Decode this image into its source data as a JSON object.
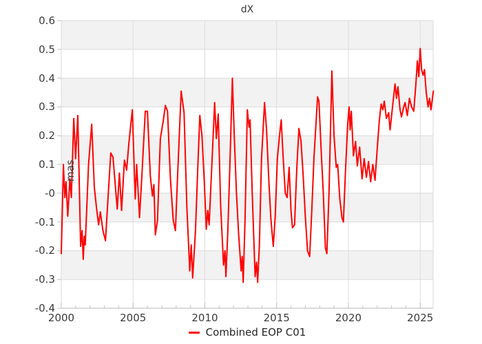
{
  "title": "dX",
  "legend": {
    "label": "Combined EOP C01",
    "position": "bottom-center"
  },
  "colors": {
    "line": "#ff0000",
    "band": "#f2f2f2",
    "grid": "#dcdcdc",
    "spine": "#d9d9d9",
    "axis": "#b8b8b8",
    "tick": "#c2c2c2",
    "text": "#3b3b3b",
    "legend_text": "#262626",
    "background": "#ffffff"
  },
  "y_axis": {
    "label": "mas",
    "tick_labels": [
      "0.6",
      "0.5",
      "0.4",
      "0.3",
      "0.2",
      "0.1",
      "-0",
      "-0.1",
      "-0.2",
      "-0.3",
      "-0.4"
    ],
    "tick_values": [
      0.6,
      0.5,
      0.4,
      0.3,
      0.2,
      0.1,
      0,
      -0.1,
      -0.2,
      -0.3,
      -0.4
    ]
  },
  "x_axis": {
    "tick_labels": [
      "2000",
      "2005",
      "2010",
      "2015",
      "2020",
      "2025"
    ],
    "tick_values": [
      2000,
      2005,
      2010,
      2015,
      2020,
      2025
    ],
    "minor_tick_step_years": 1
  },
  "chart_data": {
    "type": "line",
    "title": "dX",
    "xlabel": "",
    "ylabel": "mas",
    "xlim": [
      2000,
      2025.9
    ],
    "ylim": [
      -0.4,
      0.6
    ],
    "grid": true,
    "alternating_bands": true,
    "gray_band_ranges": [
      [
        0.5,
        0.6
      ],
      [
        0.3,
        0.4
      ],
      [
        0.1,
        0.2
      ],
      [
        -0.1,
        0.0
      ],
      [
        -0.3,
        -0.2
      ]
    ],
    "legend_position": "bottom-center",
    "series": [
      {
        "name": "Combined EOP C01",
        "color": "#ff0000",
        "points": [
          [
            2000.0,
            -0.21
          ],
          [
            2000.15,
            0.1
          ],
          [
            2000.25,
            -0.015
          ],
          [
            2000.33,
            0.04
          ],
          [
            2000.45,
            -0.08
          ],
          [
            2000.6,
            0.05
          ],
          [
            2000.7,
            -0.015
          ],
          [
            2000.87,
            0.26
          ],
          [
            2001.0,
            0.12
          ],
          [
            2001.15,
            0.27
          ],
          [
            2001.35,
            -0.185
          ],
          [
            2001.45,
            -0.13
          ],
          [
            2001.53,
            -0.23
          ],
          [
            2001.6,
            -0.15
          ],
          [
            2001.67,
            -0.18
          ],
          [
            2001.9,
            0.1
          ],
          [
            2002.12,
            0.24
          ],
          [
            2002.3,
            0.02
          ],
          [
            2002.45,
            -0.05
          ],
          [
            2002.6,
            -0.11
          ],
          [
            2002.72,
            -0.065
          ],
          [
            2002.9,
            -0.13
          ],
          [
            2003.08,
            -0.165
          ],
          [
            2003.25,
            -0.02
          ],
          [
            2003.45,
            0.14
          ],
          [
            2003.6,
            0.125
          ],
          [
            2003.9,
            -0.055
          ],
          [
            2004.05,
            0.07
          ],
          [
            2004.2,
            -0.06
          ],
          [
            2004.4,
            0.115
          ],
          [
            2004.55,
            0.08
          ],
          [
            2004.7,
            0.17
          ],
          [
            2004.95,
            0.29
          ],
          [
            2005.15,
            -0.02
          ],
          [
            2005.25,
            0.1
          ],
          [
            2005.45,
            -0.085
          ],
          [
            2005.6,
            0.05
          ],
          [
            2005.85,
            0.285
          ],
          [
            2006.0,
            0.285
          ],
          [
            2006.2,
            0.06
          ],
          [
            2006.35,
            -0.01
          ],
          [
            2006.45,
            0.03
          ],
          [
            2006.55,
            -0.145
          ],
          [
            2006.7,
            -0.095
          ],
          [
            2006.9,
            0.19
          ],
          [
            2007.1,
            0.25
          ],
          [
            2007.25,
            0.305
          ],
          [
            2007.4,
            0.285
          ],
          [
            2007.6,
            0.05
          ],
          [
            2007.8,
            -0.095
          ],
          [
            2007.95,
            -0.13
          ],
          [
            2008.1,
            0.06
          ],
          [
            2008.35,
            0.355
          ],
          [
            2008.55,
            0.28
          ],
          [
            2008.75,
            -0.05
          ],
          [
            2008.95,
            -0.27
          ],
          [
            2009.05,
            -0.18
          ],
          [
            2009.15,
            -0.295
          ],
          [
            2009.35,
            -0.13
          ],
          [
            2009.5,
            0.08
          ],
          [
            2009.65,
            0.27
          ],
          [
            2009.8,
            0.2
          ],
          [
            2009.95,
            0.05
          ],
          [
            2010.1,
            -0.125
          ],
          [
            2010.2,
            -0.06
          ],
          [
            2010.3,
            -0.11
          ],
          [
            2010.5,
            0.11
          ],
          [
            2010.68,
            0.315
          ],
          [
            2010.8,
            0.19
          ],
          [
            2010.93,
            0.275
          ],
          [
            2011.1,
            -0.04
          ],
          [
            2011.3,
            -0.25
          ],
          [
            2011.4,
            -0.2
          ],
          [
            2011.47,
            -0.29
          ],
          [
            2011.6,
            -0.13
          ],
          [
            2011.75,
            0.11
          ],
          [
            2011.92,
            0.4
          ],
          [
            2012.05,
            0.2
          ],
          [
            2012.2,
            0.0
          ],
          [
            2012.35,
            -0.14
          ],
          [
            2012.53,
            -0.27
          ],
          [
            2012.6,
            -0.22
          ],
          [
            2012.67,
            -0.31
          ],
          [
            2012.8,
            -0.09
          ],
          [
            2012.96,
            0.29
          ],
          [
            2013.08,
            0.23
          ],
          [
            2013.15,
            0.255
          ],
          [
            2013.3,
            0.0
          ],
          [
            2013.5,
            -0.29
          ],
          [
            2013.6,
            -0.24
          ],
          [
            2013.68,
            -0.31
          ],
          [
            2013.8,
            -0.18
          ],
          [
            2013.95,
            0.12
          ],
          [
            2014.16,
            0.315
          ],
          [
            2014.3,
            0.22
          ],
          [
            2014.45,
            0.05
          ],
          [
            2014.6,
            -0.09
          ],
          [
            2014.77,
            -0.185
          ],
          [
            2014.9,
            -0.08
          ],
          [
            2015.05,
            0.12
          ],
          [
            2015.2,
            0.2
          ],
          [
            2015.32,
            0.255
          ],
          [
            2015.45,
            0.13
          ],
          [
            2015.6,
            0.0
          ],
          [
            2015.73,
            -0.015
          ],
          [
            2015.87,
            0.09
          ],
          [
            2016.0,
            -0.06
          ],
          [
            2016.1,
            -0.12
          ],
          [
            2016.25,
            -0.11
          ],
          [
            2016.4,
            0.08
          ],
          [
            2016.55,
            0.225
          ],
          [
            2016.7,
            0.18
          ],
          [
            2016.85,
            0.06
          ],
          [
            2017.0,
            -0.08
          ],
          [
            2017.15,
            -0.2
          ],
          [
            2017.3,
            -0.22
          ],
          [
            2017.45,
            -0.06
          ],
          [
            2017.6,
            0.12
          ],
          [
            2017.85,
            0.335
          ],
          [
            2017.95,
            0.32
          ],
          [
            2018.1,
            0.15
          ],
          [
            2018.25,
            0.0
          ],
          [
            2018.4,
            -0.19
          ],
          [
            2018.5,
            -0.21
          ],
          [
            2018.65,
            0.0
          ],
          [
            2018.85,
            0.425
          ],
          [
            2019.0,
            0.2
          ],
          [
            2019.15,
            0.09
          ],
          [
            2019.25,
            0.1
          ],
          [
            2019.4,
            -0.02
          ],
          [
            2019.55,
            -0.085
          ],
          [
            2019.65,
            -0.1
          ],
          [
            2019.8,
            0.08
          ],
          [
            2019.95,
            0.24
          ],
          [
            2020.05,
            0.3
          ],
          [
            2020.12,
            0.22
          ],
          [
            2020.2,
            0.285
          ],
          [
            2020.35,
            0.13
          ],
          [
            2020.5,
            0.18
          ],
          [
            2020.62,
            0.095
          ],
          [
            2020.78,
            0.16
          ],
          [
            2020.95,
            0.05
          ],
          [
            2021.1,
            0.12
          ],
          [
            2021.25,
            0.055
          ],
          [
            2021.4,
            0.11
          ],
          [
            2021.55,
            0.04
          ],
          [
            2021.7,
            0.1
          ],
          [
            2021.85,
            0.045
          ],
          [
            2022.0,
            0.15
          ],
          [
            2022.15,
            0.25
          ],
          [
            2022.28,
            0.31
          ],
          [
            2022.4,
            0.29
          ],
          [
            2022.5,
            0.32
          ],
          [
            2022.65,
            0.26
          ],
          [
            2022.8,
            0.28
          ],
          [
            2022.9,
            0.22
          ],
          [
            2023.05,
            0.29
          ],
          [
            2023.25,
            0.38
          ],
          [
            2023.35,
            0.33
          ],
          [
            2023.45,
            0.37
          ],
          [
            2023.6,
            0.29
          ],
          [
            2023.7,
            0.265
          ],
          [
            2023.85,
            0.3
          ],
          [
            2023.95,
            0.315
          ],
          [
            2024.1,
            0.27
          ],
          [
            2024.25,
            0.33
          ],
          [
            2024.4,
            0.3
          ],
          [
            2024.55,
            0.285
          ],
          [
            2024.7,
            0.38
          ],
          [
            2024.8,
            0.46
          ],
          [
            2024.9,
            0.405
          ],
          [
            2025.0,
            0.503
          ],
          [
            2025.1,
            0.43
          ],
          [
            2025.2,
            0.41
          ],
          [
            2025.3,
            0.43
          ],
          [
            2025.42,
            0.35
          ],
          [
            2025.55,
            0.3
          ],
          [
            2025.65,
            0.33
          ],
          [
            2025.75,
            0.29
          ],
          [
            2025.85,
            0.33
          ],
          [
            2025.92,
            0.355
          ]
        ]
      }
    ]
  }
}
